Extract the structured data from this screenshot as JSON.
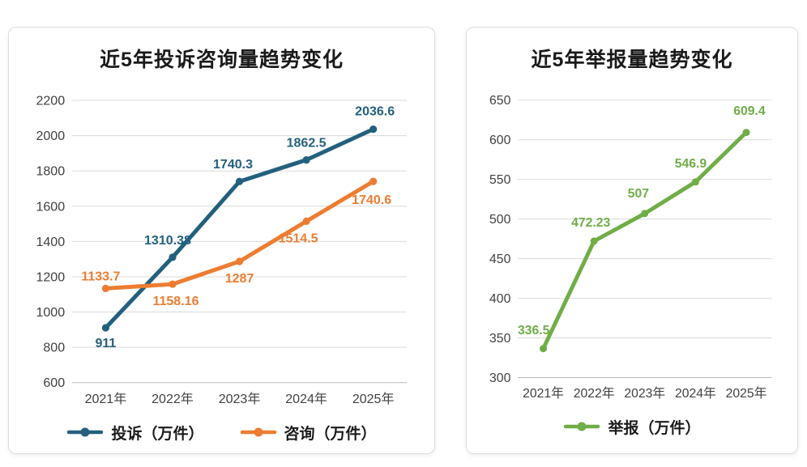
{
  "chart_data": [
    {
      "type": "line",
      "title": "近5年投诉咨询量趋势变化",
      "categories": [
        "2021年",
        "2022年",
        "2023年",
        "2024年",
        "2025年"
      ],
      "y_ticks": [
        600,
        800,
        1000,
        1200,
        1400,
        1600,
        1800,
        2000,
        2200
      ],
      "ylim": [
        600,
        2200
      ],
      "y_step": 200,
      "grid": true,
      "legend_position": "bottom",
      "series": [
        {
          "name": "投诉（万件）",
          "color": "#23607e",
          "values": [
            911,
            1310.38,
            1740.3,
            1862.5,
            2036.6
          ],
          "labels": [
            "911",
            "1310.38",
            "1740.3",
            "1862.5",
            "2036.6"
          ],
          "label_dx": [
            0,
            -6,
            -8,
            0,
            2
          ],
          "label_dy": [
            24,
            -16,
            -16,
            -16,
            -17
          ]
        },
        {
          "name": "咨询（万件）",
          "color": "#ED7D31",
          "values": [
            1133.7,
            1158.16,
            1287,
            1514.5,
            1740.6
          ],
          "labels": [
            "1133.7",
            "1158.16",
            "1287",
            "1514.5",
            "1740.6"
          ],
          "label_dx": [
            -6,
            4,
            0,
            -10,
            -2
          ],
          "label_dy": [
            -10,
            26,
            26,
            26,
            28
          ]
        }
      ]
    },
    {
      "type": "line",
      "title": "近5年举报量趋势变化",
      "categories": [
        "2021年",
        "2022年",
        "2023年",
        "2024年",
        "2025年"
      ],
      "y_ticks": [
        300,
        350,
        400,
        450,
        500,
        550,
        600,
        650
      ],
      "ylim": [
        300,
        650
      ],
      "y_step": 50,
      "grid": true,
      "legend_position": "bottom",
      "series": [
        {
          "name": "举报（万件）",
          "color": "#70AD47",
          "values": [
            336.5,
            472.23,
            507,
            546.9,
            609.4
          ],
          "labels": [
            "336.5",
            "472.23",
            "507",
            "546.9",
            "609.4"
          ],
          "label_dx": [
            -12,
            -4,
            -8,
            -6,
            4
          ],
          "label_dy": [
            -18,
            -18,
            -20,
            -18,
            -22
          ]
        }
      ]
    }
  ]
}
